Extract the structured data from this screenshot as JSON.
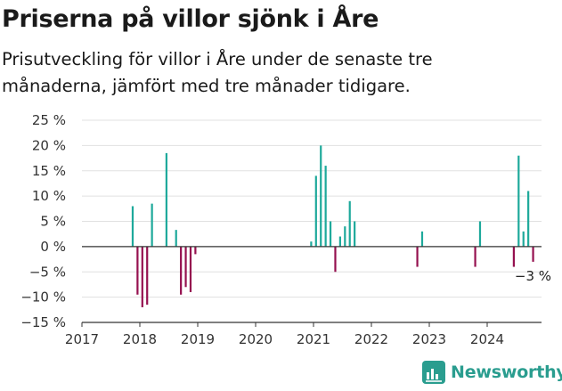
{
  "title": "Priserna på villor sjönk i Åre",
  "subtitle": "Prisutveckling för villor i Åre under de senaste tre månaderna, jämfört med tre månader tidigare.",
  "brand": {
    "name": "Newsworthy",
    "icon": "newsworthy-chart-icon"
  },
  "colors": {
    "positive": "#1ea99b",
    "negative": "#95104f",
    "grid": "#e0e0e0",
    "zero": "#333333",
    "brand": "#2a9d8f"
  },
  "chart_data": {
    "type": "bar",
    "x_axis": {
      "type": "date",
      "ticks": [
        "2017",
        "2018",
        "2019",
        "2020",
        "2021",
        "2022",
        "2023",
        "2024"
      ],
      "min": "2017-01",
      "max": "2025-01"
    },
    "y_axis": {
      "min": -15,
      "max": 25,
      "ticks": [
        25,
        20,
        15,
        10,
        5,
        0,
        -5,
        -10,
        -15
      ],
      "tick_labels": [
        "25 %",
        "20 %",
        "15 %",
        "10 %",
        "5 %",
        "0 %",
        "−5 %",
        "−10 %",
        "−15 %"
      ]
    },
    "grid": true,
    "annotation": {
      "label": "−3 %",
      "date": "2024-10",
      "value": -3
    },
    "points": [
      {
        "date": "2017-11",
        "value": 8
      },
      {
        "date": "2017-12",
        "value": -9.5
      },
      {
        "date": "2018-01",
        "value": -12
      },
      {
        "date": "2018-02",
        "value": -11.5
      },
      {
        "date": "2018-03",
        "value": 8.5
      },
      {
        "date": "2018-06",
        "value": 18.5
      },
      {
        "date": "2018-08",
        "value": 3.3
      },
      {
        "date": "2018-09",
        "value": -9.5
      },
      {
        "date": "2018-10",
        "value": -8
      },
      {
        "date": "2018-11",
        "value": -9
      },
      {
        "date": "2018-12",
        "value": -1.5
      },
      {
        "date": "2020-12",
        "value": 1
      },
      {
        "date": "2021-01",
        "value": 14
      },
      {
        "date": "2021-02",
        "value": 20
      },
      {
        "date": "2021-03",
        "value": 16
      },
      {
        "date": "2021-04",
        "value": 5
      },
      {
        "date": "2021-05",
        "value": -5
      },
      {
        "date": "2021-06",
        "value": 2
      },
      {
        "date": "2021-07",
        "value": 4
      },
      {
        "date": "2021-08",
        "value": 9
      },
      {
        "date": "2021-09",
        "value": 5
      },
      {
        "date": "2022-10",
        "value": -4
      },
      {
        "date": "2022-11",
        "value": 3
      },
      {
        "date": "2023-10",
        "value": -4
      },
      {
        "date": "2023-11",
        "value": 5
      },
      {
        "date": "2024-06",
        "value": -4
      },
      {
        "date": "2024-07",
        "value": 18
      },
      {
        "date": "2024-08",
        "value": 3
      },
      {
        "date": "2024-09",
        "value": 11
      },
      {
        "date": "2024-10",
        "value": -3
      }
    ]
  }
}
